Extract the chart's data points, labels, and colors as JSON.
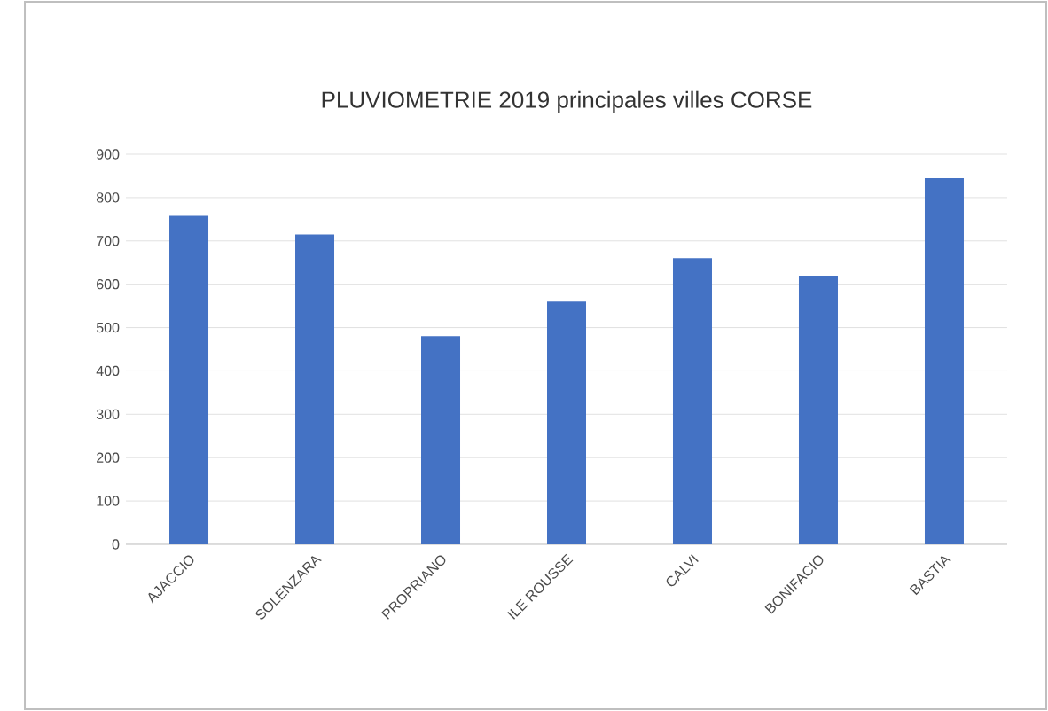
{
  "chart_data": {
    "type": "bar",
    "title": "PLUVIOMETRIE 2019 principales villes CORSE",
    "categories": [
      "AJACCIO",
      "SOLENZARA",
      "PROPRIANO",
      "ILE ROUSSE",
      "CALVI",
      "BONIFACIO",
      "BASTIA"
    ],
    "values": [
      758,
      715,
      480,
      560,
      660,
      620,
      845
    ],
    "color": "#4472c4",
    "ylim": [
      0,
      900
    ],
    "yticks": [
      0,
      100,
      200,
      300,
      400,
      500,
      600,
      700,
      800,
      900
    ],
    "grid": "y"
  }
}
